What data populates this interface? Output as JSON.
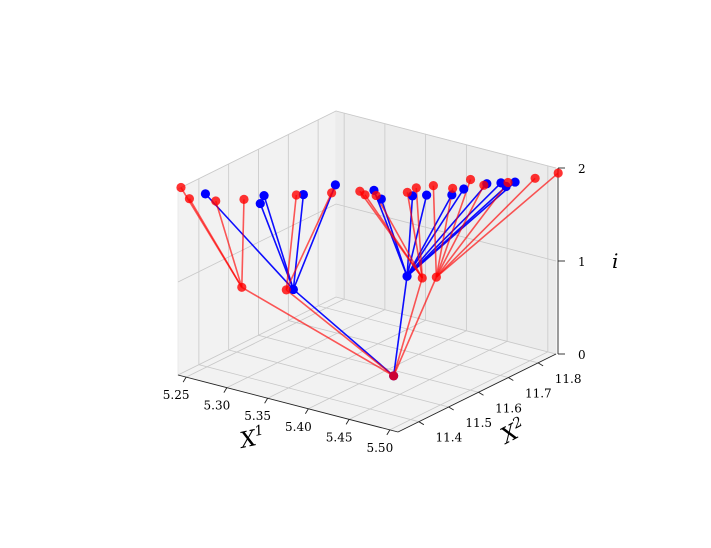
{
  "chart_data": {
    "type": "scatter",
    "projection": "3d",
    "xlabel": "X",
    "xlabel_sup": "1",
    "ylabel": "X",
    "ylabel_sup": "2",
    "zlabel": "i",
    "x_ticks": [
      "5.25",
      "5.30",
      "5.35",
      "5.40",
      "5.45",
      "5.50"
    ],
    "y_ticks": [
      "11.4",
      "11.5",
      "11.6",
      "11.7",
      "11.8"
    ],
    "z_ticks": [
      "0",
      "1",
      "2"
    ],
    "xlim": [
      5.24,
      5.51
    ],
    "ylim": [
      11.33,
      11.86
    ],
    "zlim": [
      0,
      2
    ],
    "grid": true,
    "series": [
      {
        "color": "#0000ff",
        "root": [
          5.415,
          11.575,
          0
        ],
        "mid": [
          [
            5.345,
            11.43,
            1
          ],
          [
            5.415,
            11.62,
            1
          ]
        ],
        "top": [
          [
            5.27,
            11.34,
            2
          ],
          [
            5.35,
            11.45,
            2
          ],
          [
            5.33,
            11.36,
            2
          ],
          [
            5.32,
            11.4,
            2
          ],
          [
            5.36,
            11.53,
            2
          ],
          [
            5.42,
            11.52,
            2
          ],
          [
            5.45,
            11.59,
            2
          ],
          [
            5.44,
            11.57,
            2
          ],
          [
            5.4,
            11.55,
            2
          ],
          [
            5.47,
            11.62,
            2
          ],
          [
            5.5,
            11.75,
            2
          ],
          [
            5.49,
            11.73,
            2
          ],
          [
            5.48,
            11.71,
            2
          ],
          [
            5.5,
            11.72,
            2
          ],
          [
            5.47,
            11.66,
            2
          ]
        ]
      },
      {
        "color": "#ff0000",
        "root": [
          5.415,
          11.575,
          0
        ],
        "mid": [
          [
            5.3,
            11.38,
            1
          ],
          [
            5.34,
            11.42,
            1
          ],
          [
            5.43,
            11.63,
            1
          ],
          [
            5.44,
            11.65,
            1
          ]
        ],
        "top": [
          [
            5.24,
            11.34,
            2
          ],
          [
            5.265,
            11.3,
            2
          ],
          [
            5.29,
            11.32,
            2
          ],
          [
            5.31,
            11.36,
            2
          ],
          [
            5.345,
            11.44,
            2
          ],
          [
            5.37,
            11.49,
            2
          ],
          [
            5.39,
            11.53,
            2
          ],
          [
            5.41,
            11.53,
            2
          ],
          [
            5.43,
            11.61,
            2
          ],
          [
            5.44,
            11.64,
            2
          ],
          [
            5.46,
            11.71,
            2
          ],
          [
            5.48,
            11.7,
            2
          ],
          [
            5.495,
            11.74,
            2
          ],
          [
            5.51,
            11.79,
            2
          ],
          [
            5.52,
            11.84,
            2
          ],
          [
            5.46,
            11.65,
            2
          ],
          [
            5.43,
            11.58,
            2
          ],
          [
            5.4,
            11.52,
            2
          ]
        ]
      }
    ]
  }
}
